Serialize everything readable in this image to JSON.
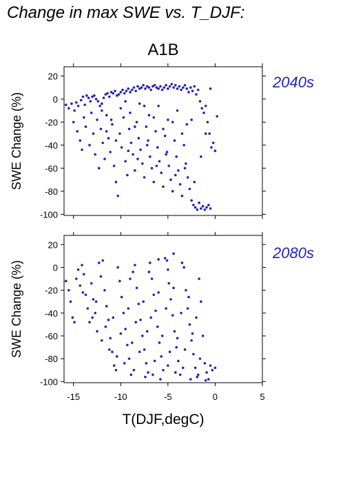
{
  "figure": {
    "title": "Change in max SWE vs. T_DJF:",
    "scenario": "A1B",
    "xlabel": "T(DJF,degC)",
    "colors": {
      "points": "#2222bb",
      "period_label": "#2222bb",
      "axes": "#000000"
    }
  },
  "chart_data": [
    {
      "type": "scatter",
      "period_label": "2040s",
      "ylabel": "SWE Change (%)",
      "xlabel": "",
      "xlim": [
        -16,
        5
      ],
      "ylim": [
        -101,
        28
      ],
      "xticks": [
        -15,
        -10,
        -5,
        0,
        5
      ],
      "yticks": [
        20,
        0,
        -20,
        -40,
        -60,
        -80,
        -100
      ],
      "xtick_labels_shown": false,
      "points": [
        [
          -15.8,
          -5
        ],
        [
          -15.5,
          -8
        ],
        [
          -15.2,
          -4
        ],
        [
          -14.9,
          -10
        ],
        [
          -14.7,
          -3
        ],
        [
          -14.5,
          -6
        ],
        [
          -14.2,
          -1
        ],
        [
          -14.0,
          2
        ],
        [
          -13.8,
          -5
        ],
        [
          -13.6,
          3
        ],
        [
          -13.4,
          1
        ],
        [
          -13.2,
          -2
        ],
        [
          -13.0,
          2
        ],
        [
          -12.8,
          3
        ],
        [
          -12.6,
          0
        ],
        [
          -12.4,
          -2
        ],
        [
          -12.2,
          -6
        ],
        [
          -12.0,
          -4
        ],
        [
          -11.8,
          1
        ],
        [
          -11.6,
          4
        ],
        [
          -11.4,
          5
        ],
        [
          -11.2,
          2
        ],
        [
          -11.0,
          6
        ],
        [
          -10.8,
          5
        ],
        [
          -10.6,
          7
        ],
        [
          -10.4,
          3
        ],
        [
          -10.2,
          4
        ],
        [
          -10.0,
          6
        ],
        [
          -9.8,
          8
        ],
        [
          -9.6,
          5
        ],
        [
          -9.4,
          7
        ],
        [
          -9.2,
          9
        ],
        [
          -9.0,
          6
        ],
        [
          -8.8,
          8
        ],
        [
          -8.6,
          10
        ],
        [
          -8.4,
          7
        ],
        [
          -8.2,
          11
        ],
        [
          -8.0,
          9
        ],
        [
          -7.8,
          10
        ],
        [
          -7.6,
          12
        ],
        [
          -7.4,
          9
        ],
        [
          -7.2,
          11
        ],
        [
          -7.0,
          10
        ],
        [
          -6.8,
          8
        ],
        [
          -6.6,
          11
        ],
        [
          -6.4,
          12
        ],
        [
          -6.2,
          10
        ],
        [
          -6.0,
          9
        ],
        [
          -5.8,
          11
        ],
        [
          -5.6,
          8
        ],
        [
          -5.4,
          10
        ],
        [
          -5.2,
          12
        ],
        [
          -5.0,
          9
        ],
        [
          -4.8,
          11
        ],
        [
          -4.6,
          13
        ],
        [
          -4.4,
          10
        ],
        [
          -4.2,
          12
        ],
        [
          -4.0,
          9
        ],
        [
          -3.8,
          11
        ],
        [
          -3.6,
          8
        ],
        [
          -3.4,
          10
        ],
        [
          -3.2,
          12
        ],
        [
          -3.0,
          9
        ],
        [
          -2.8,
          6
        ],
        [
          -2.6,
          10
        ],
        [
          -2.4,
          7
        ],
        [
          -2.2,
          11
        ],
        [
          -2.0,
          4
        ],
        [
          -1.8,
          8
        ],
        [
          -1.6,
          -2
        ],
        [
          -1.4,
          -8
        ],
        [
          -1.2,
          -12
        ],
        [
          -1.0,
          -6
        ],
        [
          -0.8,
          -20
        ],
        [
          -0.6,
          -30
        ],
        [
          -0.4,
          -42
        ],
        [
          -0.2,
          -38
        ],
        [
          0.0,
          -45
        ],
        [
          0.2,
          -15
        ],
        [
          -0.5,
          9
        ],
        [
          -15.0,
          -20
        ],
        [
          -14.6,
          -28
        ],
        [
          -14.3,
          -36
        ],
        [
          -14.1,
          -44
        ],
        [
          -13.9,
          -16
        ],
        [
          -13.7,
          -24
        ],
        [
          -13.3,
          -40
        ],
        [
          -13.1,
          -12
        ],
        [
          -12.9,
          -30
        ],
        [
          -12.7,
          -48
        ],
        [
          -12.5,
          -18
        ],
        [
          -12.3,
          -60
        ],
        [
          -12.1,
          -26
        ],
        [
          -11.9,
          -38
        ],
        [
          -11.7,
          -52
        ],
        [
          -11.5,
          -14
        ],
        [
          -11.3,
          -34
        ],
        [
          -11.1,
          -46
        ],
        [
          -10.9,
          -22
        ],
        [
          -10.7,
          -58
        ],
        [
          -10.5,
          -72
        ],
        [
          -10.3,
          -84
        ],
        [
          -10.1,
          -30
        ],
        [
          -9.9,
          -42
        ],
        [
          -9.7,
          -16
        ],
        [
          -9.5,
          -54
        ],
        [
          -9.3,
          -66
        ],
        [
          -9.1,
          -26
        ],
        [
          -8.9,
          -38
        ],
        [
          -8.7,
          -48
        ],
        [
          -8.5,
          -62
        ],
        [
          -8.3,
          -20
        ],
        [
          -8.1,
          -34
        ],
        [
          -7.9,
          -44
        ],
        [
          -7.7,
          -56
        ],
        [
          -7.5,
          -68
        ],
        [
          -7.3,
          -24
        ],
        [
          -7.1,
          -36
        ],
        [
          -6.9,
          -50
        ],
        [
          -6.7,
          -60
        ],
        [
          -6.5,
          -72
        ],
        [
          -6.3,
          -28
        ],
        [
          -6.1,
          -42
        ],
        [
          -5.9,
          -54
        ],
        [
          -5.7,
          -64
        ],
        [
          -5.5,
          -76
        ],
        [
          -5.3,
          -32
        ],
        [
          -5.1,
          -46
        ],
        [
          -4.9,
          -58
        ],
        [
          -4.7,
          -70
        ],
        [
          -4.5,
          -80
        ],
        [
          -4.3,
          -36
        ],
        [
          -4.1,
          -50
        ],
        [
          -3.9,
          -62
        ],
        [
          -3.7,
          -74
        ],
        [
          -3.5,
          -84
        ],
        [
          -3.3,
          -40
        ],
        [
          -3.1,
          -56
        ],
        [
          -2.9,
          -68
        ],
        [
          -2.7,
          -78
        ],
        [
          -2.5,
          -88
        ],
        [
          -2.3,
          -92
        ],
        [
          -2.1,
          -94
        ],
        [
          -1.9,
          -96
        ],
        [
          -1.7,
          -90
        ],
        [
          -1.5,
          -95
        ],
        [
          -1.3,
          -93
        ],
        [
          -1.1,
          -96
        ],
        [
          -0.9,
          -94
        ],
        [
          -0.7,
          -92
        ],
        [
          -0.5,
          -95
        ],
        [
          -12.0,
          -10
        ],
        [
          -11.0,
          -18
        ],
        [
          -10.0,
          -8
        ],
        [
          -9.0,
          -12
        ],
        [
          -8.0,
          -4
        ],
        [
          -7.0,
          -14
        ],
        [
          -6.0,
          -6
        ],
        [
          -5.0,
          -18
        ],
        [
          -4.0,
          -10
        ],
        [
          -3.0,
          -22
        ],
        [
          -9.5,
          -2
        ],
        [
          -8.5,
          -24
        ],
        [
          -7.5,
          -6
        ],
        [
          -6.5,
          -16
        ],
        [
          -5.5,
          -26
        ],
        [
          -4.5,
          -20
        ],
        [
          -3.5,
          -30
        ],
        [
          -2.5,
          -18
        ],
        [
          -10.5,
          -36
        ],
        [
          -11.5,
          -28
        ],
        [
          -9.2,
          -45
        ],
        [
          -8.2,
          -52
        ],
        [
          -7.2,
          -40
        ],
        [
          -6.2,
          -58
        ],
        [
          -5.2,
          -48
        ],
        [
          -4.2,
          -66
        ],
        [
          -3.2,
          -60
        ],
        [
          -2.2,
          -72
        ],
        [
          -1.5,
          -50
        ],
        [
          -1.0,
          -30
        ]
      ]
    },
    {
      "type": "scatter",
      "period_label": "2080s",
      "ylabel": "SWE Change (%)",
      "xlabel": "T(DJF,degC)",
      "xlim": [
        -16,
        5
      ],
      "ylim": [
        -101,
        28
      ],
      "xticks": [
        -15,
        -10,
        -5,
        0,
        5
      ],
      "yticks": [
        20,
        0,
        -20,
        -40,
        -60,
        -80,
        -100
      ],
      "xtick_labels_shown": true,
      "points": [
        [
          -15.8,
          -12
        ],
        [
          -15.5,
          -20
        ],
        [
          -15.3,
          -30
        ],
        [
          -15.1,
          -44
        ],
        [
          -14.9,
          -48
        ],
        [
          -14.7,
          -10
        ],
        [
          -14.5,
          -2
        ],
        [
          -14.3,
          -16
        ],
        [
          -14.1,
          2
        ],
        [
          -13.9,
          -6
        ],
        [
          -13.7,
          -24
        ],
        [
          -13.5,
          -36
        ],
        [
          -13.3,
          -48
        ],
        [
          -13.1,
          -14
        ],
        [
          -12.9,
          -28
        ],
        [
          -12.7,
          -40
        ],
        [
          -12.5,
          -56
        ],
        [
          -12.3,
          4
        ],
        [
          -12.1,
          -8
        ],
        [
          -11.9,
          6
        ],
        [
          -11.7,
          -20
        ],
        [
          -11.5,
          -34
        ],
        [
          -11.3,
          -46
        ],
        [
          -11.1,
          -62
        ],
        [
          -10.9,
          -74
        ],
        [
          -10.7,
          -86
        ],
        [
          -10.5,
          -90
        ],
        [
          -10.3,
          0
        ],
        [
          -10.1,
          -12
        ],
        [
          -9.9,
          -26
        ],
        [
          -9.7,
          -40
        ],
        [
          -9.5,
          -54
        ],
        [
          -9.3,
          -68
        ],
        [
          -9.1,
          -80
        ],
        [
          -8.9,
          -94
        ],
        [
          -8.7,
          -4
        ],
        [
          -8.5,
          2
        ],
        [
          -8.3,
          -18
        ],
        [
          -8.1,
          -32
        ],
        [
          -7.9,
          -46
        ],
        [
          -7.7,
          -60
        ],
        [
          -7.5,
          -72
        ],
        [
          -7.3,
          -84
        ],
        [
          -7.1,
          -92
        ],
        [
          -6.9,
          4
        ],
        [
          -6.7,
          -10
        ],
        [
          -6.5,
          -24
        ],
        [
          -6.3,
          -38
        ],
        [
          -6.1,
          -52
        ],
        [
          -5.9,
          -66
        ],
        [
          -5.7,
          -78
        ],
        [
          -5.5,
          -90
        ],
        [
          -5.3,
          8
        ],
        [
          -5.1,
          6
        ],
        [
          -4.9,
          -14
        ],
        [
          -4.7,
          -28
        ],
        [
          -4.5,
          -42
        ],
        [
          -4.3,
          -56
        ],
        [
          -4.1,
          -70
        ],
        [
          -3.9,
          -82
        ],
        [
          -3.7,
          -94
        ],
        [
          -3.5,
          4
        ],
        [
          -3.3,
          0
        ],
        [
          -3.1,
          -20
        ],
        [
          -2.9,
          -36
        ],
        [
          -2.7,
          -50
        ],
        [
          -2.5,
          -64
        ],
        [
          -2.3,
          -76
        ],
        [
          -2.1,
          -88
        ],
        [
          -1.9,
          -96
        ],
        [
          -1.7,
          -10
        ],
        [
          -1.5,
          -30
        ],
        [
          -1.3,
          -60
        ],
        [
          -1.1,
          -84
        ],
        [
          -0.9,
          -92
        ],
        [
          -0.7,
          -98
        ],
        [
          -0.5,
          -86
        ],
        [
          -0.3,
          -90
        ],
        [
          0.0,
          -88
        ],
        [
          -4.4,
          12
        ],
        [
          -6.0,
          7
        ],
        [
          -12.0,
          -64
        ],
        [
          -11.2,
          -72
        ],
        [
          -10.4,
          -78
        ],
        [
          -9.6,
          -84
        ],
        [
          -8.8,
          -66
        ],
        [
          -8.0,
          -74
        ],
        [
          -7.2,
          -56
        ],
        [
          -6.4,
          -82
        ],
        [
          -5.6,
          -60
        ],
        [
          -4.8,
          -74
        ],
        [
          -4.0,
          -62
        ],
        [
          -3.2,
          -72
        ],
        [
          -2.4,
          -58
        ],
        [
          -1.6,
          -80
        ],
        [
          -11.6,
          -52
        ],
        [
          -10.8,
          -44
        ],
        [
          -10.0,
          -58
        ],
        [
          -9.2,
          -36
        ],
        [
          -8.4,
          -48
        ],
        [
          -7.6,
          -30
        ],
        [
          -6.8,
          -44
        ],
        [
          -6.0,
          -22
        ],
        [
          -5.2,
          -36
        ],
        [
          -4.4,
          -18
        ],
        [
          -3.6,
          -40
        ],
        [
          -2.8,
          -26
        ],
        [
          -2.0,
          -44
        ],
        [
          -13.0,
          -44
        ],
        [
          -12.6,
          -30
        ],
        [
          -14.0,
          -22
        ],
        [
          -9.0,
          -10
        ],
        [
          -7.0,
          -4
        ],
        [
          -5.0,
          -2
        ],
        [
          -8.6,
          -90
        ],
        [
          -7.4,
          -96
        ],
        [
          -6.6,
          -94
        ],
        [
          -5.8,
          -98
        ],
        [
          -5.0,
          -86
        ],
        [
          -4.2,
          -92
        ],
        [
          -3.4,
          -88
        ],
        [
          -2.6,
          -98
        ],
        [
          -1.8,
          -94
        ],
        [
          -1.0,
          -99
        ]
      ]
    }
  ]
}
